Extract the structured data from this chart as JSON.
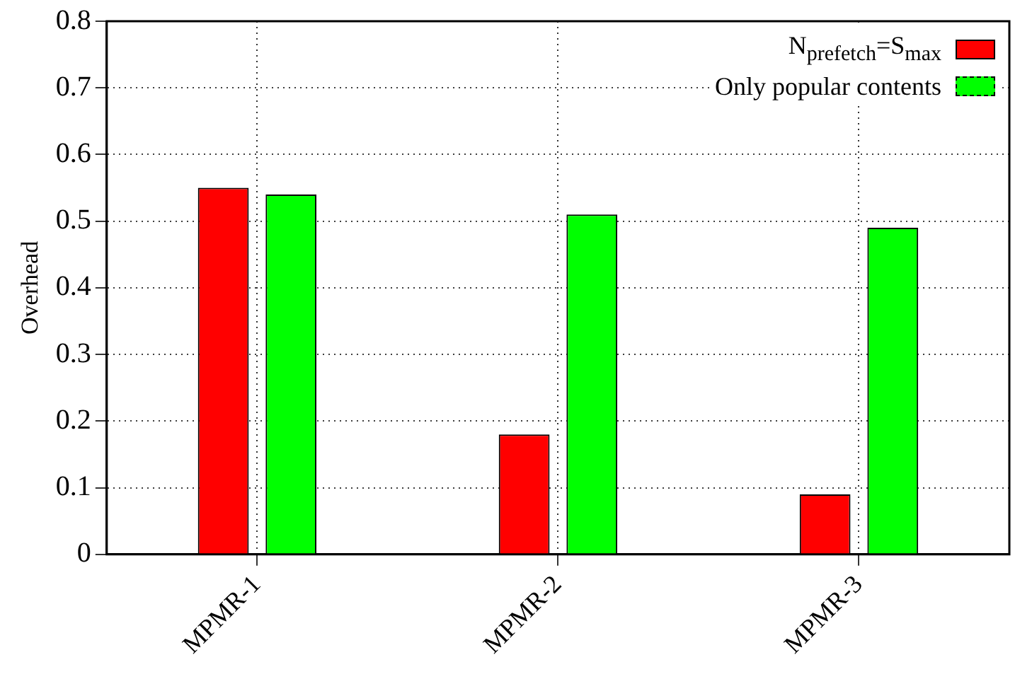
{
  "chart_data": {
    "type": "bar",
    "ylabel": "Overhead",
    "categories": [
      "MPMR-1",
      "MPMR-2",
      "MPMR-3"
    ],
    "series": [
      {
        "name": "N$_{prefetch}$=S$_{max}$",
        "color": "#ff0000",
        "values": [
          0.55,
          0.18,
          0.09
        ]
      },
      {
        "name": "Only popular contents",
        "color": "#00ff00",
        "values": [
          0.54,
          0.51,
          0.49
        ],
        "line_style": "dashed"
      }
    ],
    "ylim": [
      0,
      0.8
    ],
    "yticks": [
      0,
      0.1,
      0.2,
      0.3,
      0.4,
      0.5,
      0.6,
      0.7,
      0.8
    ],
    "grid": true,
    "legend": "top right"
  }
}
